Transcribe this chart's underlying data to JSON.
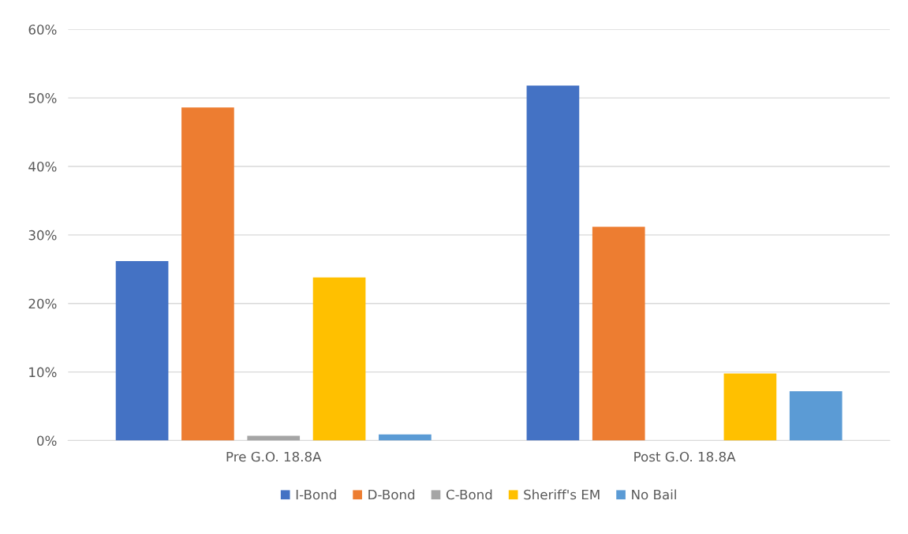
{
  "chart_data": {
    "type": "bar",
    "categories": [
      "Pre G.O. 18.8A",
      "Post G.O. 18.8A"
    ],
    "series": [
      {
        "name": "I-Bond",
        "color": "#4472c4",
        "values": [
          26.2,
          51.8
        ]
      },
      {
        "name": "D-Bond",
        "color": "#ed7d31",
        "values": [
          48.6,
          31.2
        ]
      },
      {
        "name": "C-Bond",
        "color": "#a5a5a5",
        "values": [
          0.7,
          0
        ]
      },
      {
        "name": "Sheriff's EM",
        "color": "#ffc000",
        "values": [
          23.8,
          9.8
        ]
      },
      {
        "name": "No Bail",
        "color": "#5b9bd5",
        "values": [
          0.9,
          7.2
        ]
      }
    ],
    "ylim": [
      0,
      60
    ],
    "yticks": [
      {
        "value": 0,
        "label": "0%"
      },
      {
        "value": 10,
        "label": "10%"
      },
      {
        "value": 20,
        "label": "20%"
      },
      {
        "value": 30,
        "label": "30%"
      },
      {
        "value": 40,
        "label": "40%"
      },
      {
        "value": 50,
        "label": "50%"
      },
      {
        "value": 60,
        "label": "60%"
      }
    ],
    "grid": "y",
    "legend": "bottom"
  }
}
